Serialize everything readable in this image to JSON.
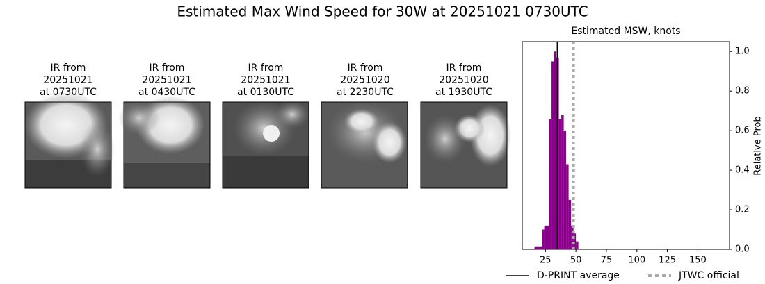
{
  "chart_data": {
    "type": "histogram",
    "title": "Estimated Max Wind Speed for 30W at 20251021 0730UTC",
    "panels": [
      {
        "lines": [
          "IR from",
          "20251021",
          "at 0730UTC"
        ]
      },
      {
        "lines": [
          "IR from",
          "20251021",
          "at 0430UTC"
        ]
      },
      {
        "lines": [
          "IR from",
          "20251021",
          "at 0130UTC"
        ]
      },
      {
        "lines": [
          "IR from",
          "20251020",
          "at 2230UTC"
        ]
      },
      {
        "lines": [
          "IR from",
          "20251020",
          "at 1930UTC"
        ]
      }
    ],
    "subtitle": "Estimated MSW, knots",
    "y_label": "Relative Prob",
    "bins": [
      16,
      18,
      20,
      22,
      24,
      26,
      28,
      30,
      32,
      34,
      36,
      38,
      40,
      42,
      44,
      46,
      48,
      50,
      52
    ],
    "values": [
      0.015,
      0.015,
      0.015,
      0.1,
      0.12,
      0.12,
      0.66,
      0.95,
      1.0,
      0.97,
      0.66,
      0.68,
      0.6,
      0.43,
      0.25,
      0.12,
      0.08,
      0.04
    ],
    "color": "#8b008b",
    "xlim": [
      6,
      176
    ],
    "ylim": [
      0,
      1.05
    ],
    "xticks": [
      25,
      50,
      75,
      100,
      125,
      150
    ],
    "yticks": [
      {
        "value": 0,
        "label": "0.0"
      },
      0.2,
      0.4,
      0.6,
      0.8,
      {
        "value": 1,
        "label": "1.0"
      }
    ],
    "reference_lines": [
      {
        "name": "D-PRINT average",
        "value": 34.7,
        "color": "#000000",
        "style": "solid"
      },
      {
        "name": "JTWC official",
        "value": 48,
        "color": "#aaaaaa",
        "style": "dotted"
      }
    ]
  }
}
